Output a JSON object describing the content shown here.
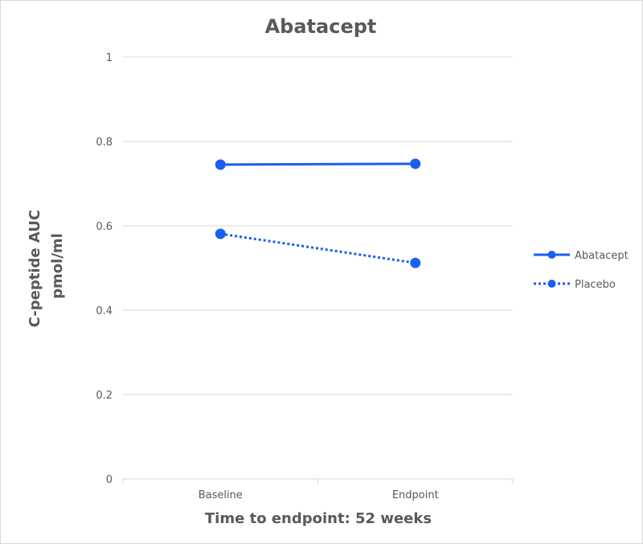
{
  "chart_data": {
    "type": "line",
    "title": "Abatacept",
    "xlabel": "Time to endpoint: 52 weeks",
    "ylabel_lines": [
      "C-peptide AUC",
      "pmol/ml"
    ],
    "categories": [
      "Baseline",
      "Endpoint"
    ],
    "ylim": [
      0,
      1
    ],
    "yticks": [
      0,
      0.2,
      0.4,
      0.6,
      0.8,
      1
    ],
    "ytick_labels": [
      "0",
      "0.2",
      "0.4",
      "0.6",
      "0.8",
      "1"
    ],
    "grid": true,
    "legend_position": "right",
    "series": [
      {
        "name": "Abatacept",
        "values": [
          0.745,
          0.747
        ],
        "color": "#1a5ff0",
        "style": "solid"
      },
      {
        "name": "Placebo",
        "values": [
          0.581,
          0.512
        ],
        "color": "#1a5ff0",
        "style": "dotted"
      }
    ]
  }
}
